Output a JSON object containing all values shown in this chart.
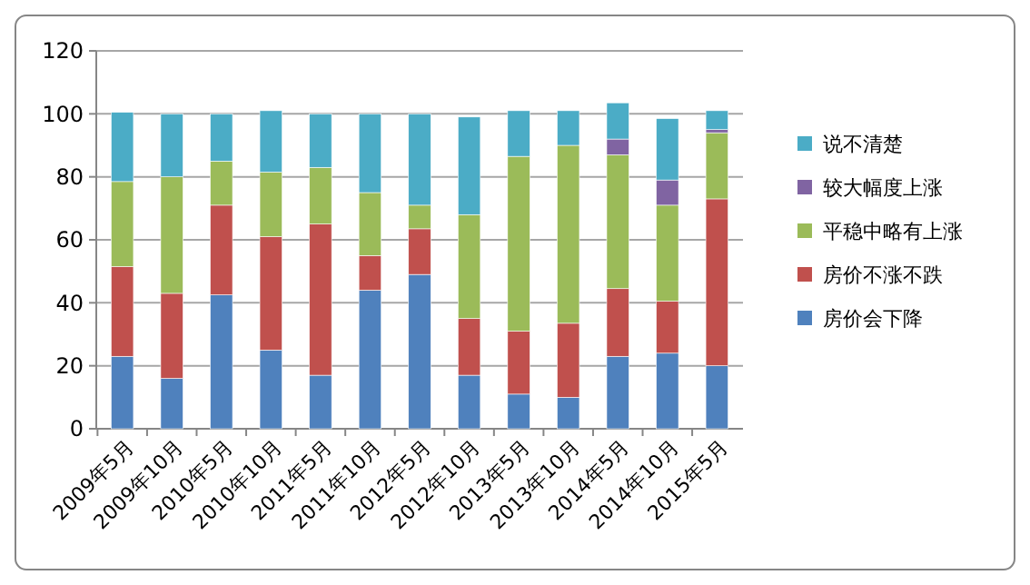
{
  "chart_data": {
    "type": "bar",
    "stacked": true,
    "categories": [
      "2009年5月",
      "2009年10月",
      "2010年5月",
      "2010年10月",
      "2011年5月",
      "2011年10月",
      "2012年5月",
      "2012年10月",
      "2013年5月",
      "2013年10月",
      "2014年5月",
      "2014年10月",
      "2015年5月"
    ],
    "series": [
      {
        "name": "房价会下降",
        "color": "#4f81bd",
        "values": [
          23,
          16,
          42.5,
          25,
          17,
          44,
          49,
          17,
          11,
          10,
          23,
          24,
          20
        ]
      },
      {
        "name": "房价不涨不跌",
        "color": "#c0504d",
        "values": [
          28.5,
          27,
          28.5,
          36,
          48,
          11,
          14.5,
          18,
          20,
          23.5,
          21.5,
          16.5,
          53
        ]
      },
      {
        "name": "平稳中略有上涨",
        "color": "#9bbb59",
        "values": [
          27,
          37,
          14,
          20.5,
          18,
          20,
          7.5,
          33,
          55.5,
          56.5,
          42.5,
          30.5,
          21
        ]
      },
      {
        "name": "较大幅度上涨",
        "color": "#8064a2",
        "values": [
          0,
          0,
          0,
          0,
          0,
          0,
          0,
          0,
          0,
          0,
          5,
          8,
          1
        ]
      },
      {
        "name": "说不清楚",
        "color": "#4bacc6",
        "values": [
          22,
          20,
          15,
          19.5,
          17,
          25,
          29,
          31,
          14.5,
          11,
          11.5,
          19.5,
          6
        ]
      }
    ],
    "ylim": [
      0,
      120
    ],
    "yticks": [
      0,
      20,
      40,
      60,
      80,
      100,
      120
    ],
    "grid": "y",
    "legend": "right"
  }
}
